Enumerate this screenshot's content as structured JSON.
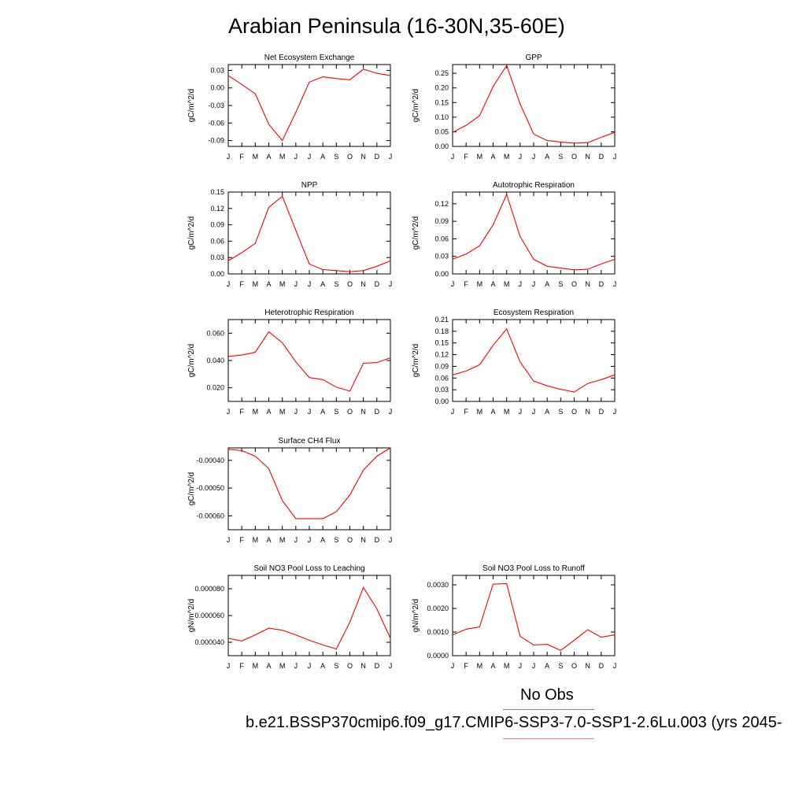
{
  "figure_title": "Arabian Peninsula (16-30N,35-60E)",
  "legend": {
    "obs_label": "No Obs",
    "obs_color": "#6f7ff0",
    "run_label": "b.e21.BSSP370cmip6.f09_g17.CMIP6-SSP3-7.0-SSP1-2.6Lu.003 (yrs 2045-",
    "run_color": "#f08080"
  },
  "line_color": "#ff0000",
  "chart_data": [
    {
      "type": "line",
      "title": "Net Ecosystem Exchange",
      "ylabel": "gC/m^2/d",
      "categories": [
        "J",
        "F",
        "M",
        "A",
        "M",
        "J",
        "J",
        "A",
        "S",
        "O",
        "N",
        "D",
        "J"
      ],
      "values": [
        0.021,
        0.006,
        -0.01,
        -0.062,
        -0.09,
        -0.042,
        0.01,
        0.019,
        0.016,
        0.014,
        0.032,
        0.025,
        0.021
      ],
      "ylim": [
        -0.1,
        0.04
      ],
      "yticks": [
        0.03,
        0.0,
        -0.03,
        -0.06,
        -0.09
      ],
      "yticklabels": [
        "0.03",
        "0.00",
        "-0.03",
        "-0.06",
        "-0.09"
      ]
    },
    {
      "type": "line",
      "title": "GPP",
      "ylabel": "gC/m^2/d",
      "categories": [
        "J",
        "F",
        "M",
        "A",
        "M",
        "J",
        "J",
        "A",
        "S",
        "O",
        "N",
        "D",
        "J"
      ],
      "values": [
        0.048,
        0.072,
        0.105,
        0.205,
        0.277,
        0.145,
        0.042,
        0.02,
        0.015,
        0.011,
        0.013,
        0.031,
        0.048
      ],
      "ylim": [
        0,
        0.28
      ],
      "yticks": [
        0,
        0.05,
        0.1,
        0.15,
        0.2,
        0.25
      ],
      "yticklabels": [
        "0.00",
        "0.05",
        "0.10",
        "0.15",
        "0.20",
        "0.25"
      ]
    },
    {
      "type": "line",
      "title": "NPP",
      "ylabel": "gC/m^2/d",
      "categories": [
        "J",
        "F",
        "M",
        "A",
        "M",
        "J",
        "J",
        "A",
        "S",
        "O",
        "N",
        "D",
        "J"
      ],
      "values": [
        0.024,
        0.039,
        0.056,
        0.122,
        0.142,
        0.08,
        0.018,
        0.008,
        0.006,
        0.004,
        0.006,
        0.014,
        0.024
      ],
      "ylim": [
        0,
        0.15
      ],
      "yticks": [
        0,
        0.03,
        0.06,
        0.09,
        0.12,
        0.15
      ],
      "yticklabels": [
        "0.00",
        "0.03",
        "0.06",
        "0.09",
        "0.12",
        "0.15"
      ]
    },
    {
      "type": "line",
      "title": "Autotrophic Respiration",
      "ylabel": "gC/m^2/d",
      "categories": [
        "J",
        "F",
        "M",
        "A",
        "M",
        "J",
        "J",
        "A",
        "S",
        "O",
        "N",
        "D",
        "J"
      ],
      "values": [
        0.025,
        0.034,
        0.048,
        0.084,
        0.136,
        0.064,
        0.025,
        0.013,
        0.01,
        0.007,
        0.008,
        0.017,
        0.025
      ],
      "ylim": [
        0,
        0.14
      ],
      "yticks": [
        0,
        0.03,
        0.06,
        0.09,
        0.12
      ],
      "yticklabels": [
        "0.00",
        "0.03",
        "0.06",
        "0.09",
        "0.12"
      ]
    },
    {
      "type": "line",
      "title": "Heterotrophic Respiration",
      "ylabel": "gC/m^2/d",
      "categories": [
        "J",
        "F",
        "M",
        "A",
        "M",
        "J",
        "J",
        "A",
        "S",
        "O",
        "N",
        "D",
        "J"
      ],
      "values": [
        0.043,
        0.044,
        0.046,
        0.061,
        0.053,
        0.039,
        0.0275,
        0.026,
        0.0205,
        0.0175,
        0.038,
        0.0385,
        0.042
      ],
      "ylim": [
        0.01,
        0.07
      ],
      "yticks": [
        0.06,
        0.04,
        0.02
      ],
      "yticklabels": [
        "0.060",
        "0.040",
        "0.020"
      ]
    },
    {
      "type": "line",
      "title": "Ecosystem Respiration",
      "ylabel": "gC/m^2/d",
      "categories": [
        "J",
        "F",
        "M",
        "A",
        "M",
        "J",
        "J",
        "A",
        "S",
        "O",
        "N",
        "D",
        "J"
      ],
      "values": [
        0.068,
        0.078,
        0.094,
        0.144,
        0.186,
        0.101,
        0.052,
        0.04,
        0.031,
        0.024,
        0.046,
        0.056,
        0.068
      ],
      "ylim": [
        0,
        0.21
      ],
      "yticks": [
        0,
        0.03,
        0.06,
        0.09,
        0.12,
        0.15,
        0.18,
        0.21
      ],
      "yticklabels": [
        "0.00",
        "0.03",
        "0.06",
        "0.09",
        "0.12",
        "0.15",
        "0.18",
        "0.21"
      ]
    },
    {
      "type": "line",
      "title": "Surface CH4 Flux",
      "ylabel": "gC/m^2/d",
      "categories": [
        "J",
        "F",
        "M",
        "A",
        "M",
        "J",
        "J",
        "A",
        "S",
        "O",
        "N",
        "D",
        "J"
      ],
      "values": [
        -0.00036,
        -0.000365,
        -0.000385,
        -0.00043,
        -0.000545,
        -0.00061,
        -0.00061,
        -0.00061,
        -0.000585,
        -0.000525,
        -0.000435,
        -0.000385,
        -0.000355
      ],
      "ylim": [
        -0.00065,
        -0.000355
      ],
      "yticks": [
        -0.0004,
        -0.0005,
        -0.0006
      ],
      "yticklabels": [
        "-0.00040",
        "-0.00050",
        "-0.00060"
      ]
    },
    {
      "type": "line",
      "title": "Soil NO3 Pool Loss to Leaching",
      "ylabel": "gN/m^2/d",
      "categories": [
        "J",
        "F",
        "M",
        "A",
        "M",
        "J",
        "J",
        "A",
        "S",
        "O",
        "N",
        "D",
        "J"
      ],
      "values": [
        4.3e-05,
        4.1e-05,
        4.55e-05,
        5.05e-05,
        4.9e-05,
        4.55e-05,
        4.15e-05,
        3.8e-05,
        3.5e-05,
        5.5e-05,
        8.1e-05,
        6.5e-05,
        4.3e-05
      ],
      "ylim": [
        3e-05,
        9e-05
      ],
      "yticks": [
        8e-05,
        6e-05,
        4e-05
      ],
      "yticklabels": [
        "0.000080",
        "0.000060",
        "0.000040"
      ]
    },
    {
      "type": "line",
      "title": "Soil NO3 Pool Loss to Runoff",
      "ylabel": "gN/m^2/d",
      "categories": [
        "J",
        "F",
        "M",
        "A",
        "M",
        "J",
        "J",
        "A",
        "S",
        "O",
        "N",
        "D",
        "J"
      ],
      "values": [
        0.00088,
        0.00112,
        0.00122,
        0.00303,
        0.00305,
        0.00082,
        0.00045,
        0.00048,
        0.00022,
        0.00065,
        0.0011,
        0.00078,
        0.00088
      ],
      "ylim": [
        0,
        0.0034
      ],
      "yticks": [
        0,
        0.001,
        0.002,
        0.003
      ],
      "yticklabels": [
        "0.0000",
        "0.0010",
        "0.0020",
        "0.0030"
      ]
    }
  ]
}
